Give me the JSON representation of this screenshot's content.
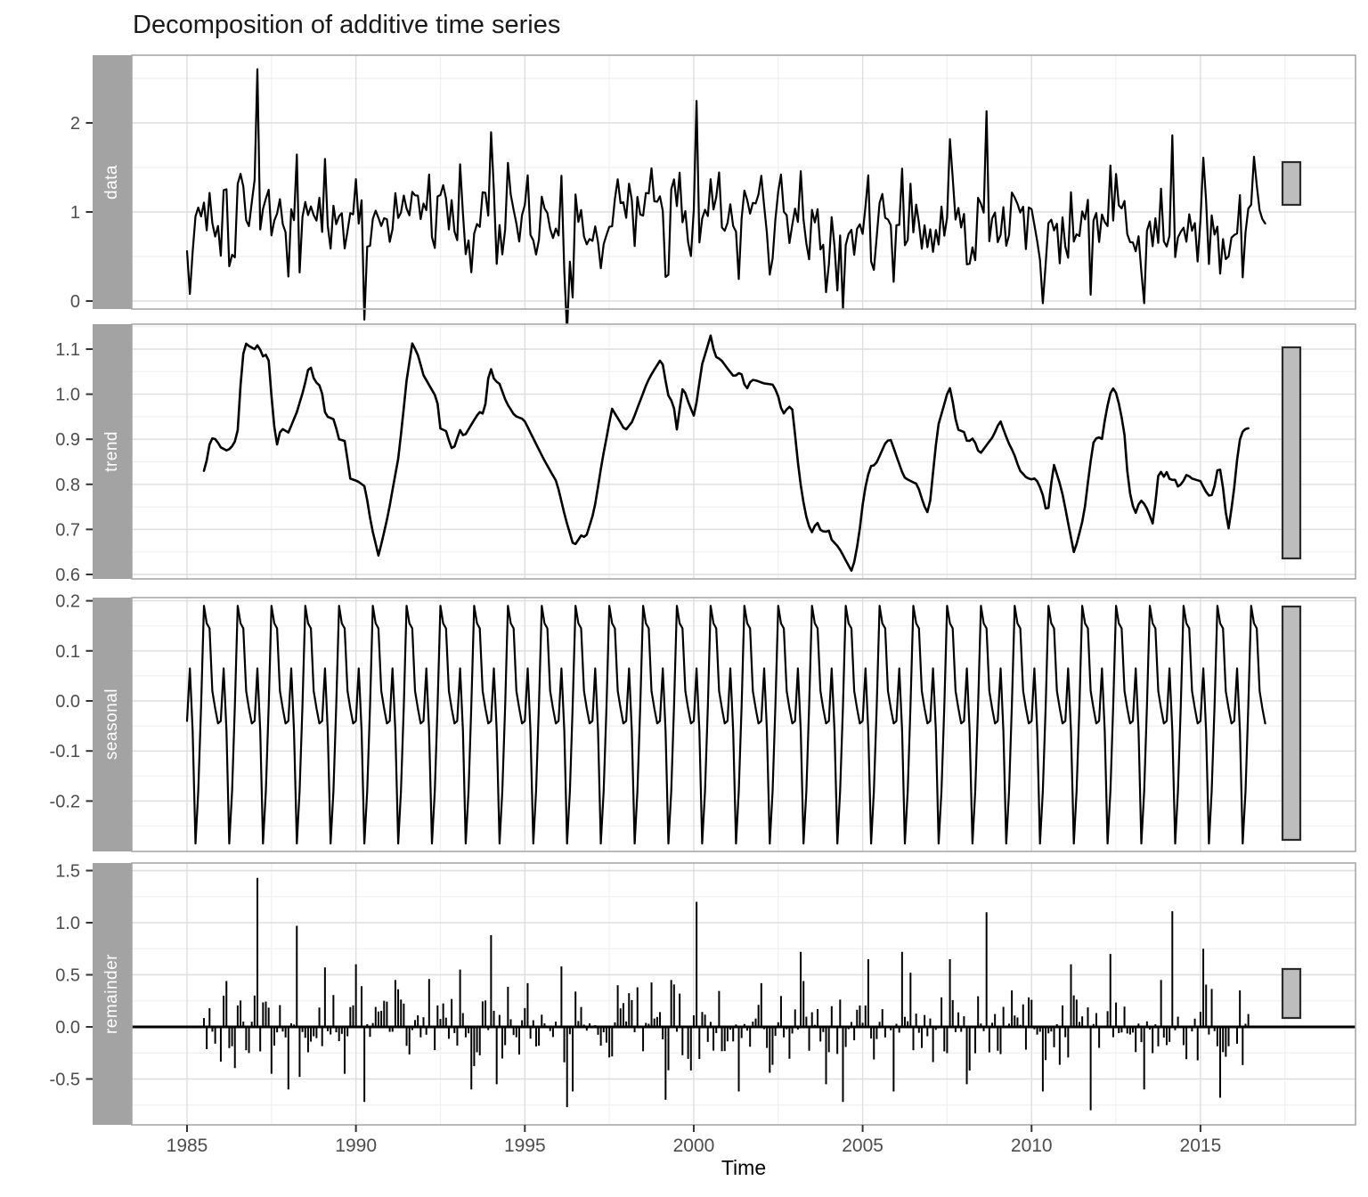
{
  "title": "Decomposition of additive time series",
  "axis": {
    "x_label": "Time"
  },
  "panels": [
    {
      "label": "data"
    },
    {
      "label": "trend"
    },
    {
      "label": "seasonal"
    },
    {
      "label": "remainder"
    }
  ],
  "colors": {
    "series": "#000000",
    "strip_bg": "#a3a3a3",
    "strip_text": "#ffffff",
    "grid_major": "#dedede",
    "grid_minor": "#f0f0f0",
    "panel_border": "#a8a8a8",
    "panel_bg": "#ffffff",
    "tick_mark": "#333333",
    "tick_label": "#4d4d4d",
    "scale_bar_fill": "#bdbdbd",
    "scale_bar_border": "#2b2b2b"
  },
  "chart_data": {
    "type": "line",
    "title": "Decomposition of additive time series",
    "xlabel": "Time",
    "x_ticks": [
      1985,
      1990,
      1995,
      2000,
      2005,
      2010,
      2015
    ],
    "x_minor_ticks": [
      1987.5,
      1992.5,
      1997.5,
      2002.5,
      2007.5,
      2012.5,
      2017.5
    ],
    "x_range_years": [
      1983.35,
      2019.6
    ],
    "start_year": 1985,
    "n_months": 384,
    "grid": true,
    "legend": "none",
    "panels": [
      {
        "name": "data",
        "y_tick_labels": [
          "0",
          "1",
          "2"
        ],
        "y_minor": [
          0.5,
          1.5,
          2.5
        ],
        "ylim": [
          -0.09,
          2.76
        ]
      },
      {
        "name": "trend",
        "y_tick_labels": [
          "1.1",
          "1.0",
          "0.9",
          "0.8",
          "0.7",
          "0.6"
        ],
        "y_minor": [
          0.65,
          0.75,
          0.85,
          0.95,
          1.05,
          1.15
        ],
        "ylim": [
          0.59,
          1.156
        ]
      },
      {
        "name": "seasonal",
        "y_tick_labels": [
          "0.2",
          "0.1",
          "0.0",
          "-0.1",
          "-0.2"
        ],
        "y_minor": [
          -0.25,
          -0.15,
          -0.05,
          0.05,
          0.15
        ],
        "ylim": [
          -0.301,
          0.206
        ]
      },
      {
        "name": "remainder",
        "y_tick_labels": [
          "1.5",
          "1.0",
          "0.5",
          "0.0",
          "-0.5"
        ],
        "y_minor": [
          -0.75,
          -0.25,
          0.25,
          0.75,
          1.25
        ],
        "ylim": [
          -0.94,
          1.573
        ]
      }
    ],
    "seasonal_pattern": [
      -0.04,
      0.065,
      -0.06,
      -0.285,
      -0.18,
      -0.01,
      0.19,
      0.155,
      0.145,
      0.02,
      -0.015,
      -0.045
    ],
    "trend_points": [
      [
        1985.53,
        0.83
      ],
      [
        1985.7,
        0.903
      ],
      [
        1985.85,
        0.9
      ],
      [
        1986.0,
        0.882
      ],
      [
        1986.2,
        0.874
      ],
      [
        1986.4,
        0.89
      ],
      [
        1986.5,
        0.92
      ],
      [
        1986.6,
        1.04
      ],
      [
        1986.7,
        1.115
      ],
      [
        1986.85,
        1.106
      ],
      [
        1987.0,
        1.1
      ],
      [
        1987.1,
        1.11
      ],
      [
        1987.25,
        1.084
      ],
      [
        1987.4,
        1.09
      ],
      [
        1987.55,
        0.95
      ],
      [
        1987.65,
        0.883
      ],
      [
        1987.78,
        0.925
      ],
      [
        1988.0,
        0.915
      ],
      [
        1988.25,
        0.96
      ],
      [
        1988.45,
        1.01
      ],
      [
        1988.63,
        1.069
      ],
      [
        1988.77,
        1.03
      ],
      [
        1988.97,
        1.016
      ],
      [
        1989.1,
        0.952
      ],
      [
        1989.35,
        0.944
      ],
      [
        1989.5,
        0.9
      ],
      [
        1989.68,
        0.896
      ],
      [
        1989.82,
        0.813
      ],
      [
        1990.05,
        0.807
      ],
      [
        1990.27,
        0.795
      ],
      [
        1990.45,
        0.71
      ],
      [
        1990.67,
        0.641
      ],
      [
        1990.95,
        0.732
      ],
      [
        1991.27,
        0.865
      ],
      [
        1991.5,
        1.03
      ],
      [
        1991.67,
        1.114
      ],
      [
        1991.85,
        1.084
      ],
      [
        1992.0,
        1.042
      ],
      [
        1992.2,
        1.016
      ],
      [
        1992.4,
        0.99
      ],
      [
        1992.5,
        0.924
      ],
      [
        1992.67,
        0.918
      ],
      [
        1992.82,
        0.88
      ],
      [
        1992.94,
        0.885
      ],
      [
        1993.07,
        0.922
      ],
      [
        1993.2,
        0.905
      ],
      [
        1993.38,
        0.928
      ],
      [
        1993.65,
        0.961
      ],
      [
        1993.8,
        0.955
      ],
      [
        1993.96,
        1.065
      ],
      [
        1994.1,
        1.031
      ],
      [
        1994.25,
        1.023
      ],
      [
        1994.45,
        0.982
      ],
      [
        1994.7,
        0.952
      ],
      [
        1994.97,
        0.944
      ],
      [
        1995.23,
        0.905
      ],
      [
        1995.55,
        0.857
      ],
      [
        1995.95,
        0.804
      ],
      [
        1996.2,
        0.725
      ],
      [
        1996.45,
        0.662
      ],
      [
        1996.68,
        0.688
      ],
      [
        1996.8,
        0.68
      ],
      [
        1997.05,
        0.741
      ],
      [
        1997.3,
        0.857
      ],
      [
        1997.58,
        0.968
      ],
      [
        1997.84,
        0.936
      ],
      [
        1997.97,
        0.919
      ],
      [
        1998.18,
        0.939
      ],
      [
        1998.63,
        1.028
      ],
      [
        1998.85,
        1.057
      ],
      [
        1999.05,
        1.08
      ],
      [
        1999.24,
        0.998
      ],
      [
        1999.4,
        0.978
      ],
      [
        1999.5,
        0.922
      ],
      [
        1999.68,
        1.018
      ],
      [
        1999.85,
        0.98
      ],
      [
        2000.02,
        0.949
      ],
      [
        2000.24,
        1.064
      ],
      [
        2000.5,
        1.13
      ],
      [
        2000.63,
        1.084
      ],
      [
        2000.8,
        1.077
      ],
      [
        2001.03,
        1.054
      ],
      [
        2001.2,
        1.038
      ],
      [
        2001.32,
        1.047
      ],
      [
        2001.42,
        1.044
      ],
      [
        2001.55,
        1.008
      ],
      [
        2001.7,
        1.032
      ],
      [
        2001.82,
        1.031
      ],
      [
        2002.08,
        1.024
      ],
      [
        2002.35,
        1.021
      ],
      [
        2002.48,
        1.001
      ],
      [
        2002.61,
        0.962
      ],
      [
        2002.7,
        0.955
      ],
      [
        2002.79,
        0.975
      ],
      [
        2002.93,
        0.965
      ],
      [
        2003.06,
        0.863
      ],
      [
        2003.19,
        0.784
      ],
      [
        2003.32,
        0.731
      ],
      [
        2003.45,
        0.698
      ],
      [
        2003.51,
        0.693
      ],
      [
        2003.64,
        0.719
      ],
      [
        2003.75,
        0.699
      ],
      [
        2003.9,
        0.693
      ],
      [
        2003.98,
        0.703
      ],
      [
        2004.06,
        0.679
      ],
      [
        2004.3,
        0.659
      ],
      [
        2004.56,
        0.623
      ],
      [
        2004.67,
        0.608
      ],
      [
        2004.77,
        0.632
      ],
      [
        2004.9,
        0.691
      ],
      [
        2005.04,
        0.78
      ],
      [
        2005.22,
        0.84
      ],
      [
        2005.38,
        0.843
      ],
      [
        2005.7,
        0.896
      ],
      [
        2005.83,
        0.899
      ],
      [
        2006.22,
        0.816
      ],
      [
        2006.35,
        0.81
      ],
      [
        2006.62,
        0.8
      ],
      [
        2006.77,
        0.764
      ],
      [
        2006.88,
        0.741
      ],
      [
        2006.96,
        0.735
      ],
      [
        2007.22,
        0.926
      ],
      [
        2007.54,
        1.011
      ],
      [
        2007.6,
        1.014
      ],
      [
        2007.8,
        0.922
      ],
      [
        2008.0,
        0.916
      ],
      [
        2008.1,
        0.893
      ],
      [
        2008.28,
        0.903
      ],
      [
        2008.46,
        0.866
      ],
      [
        2008.86,
        0.906
      ],
      [
        2009.07,
        0.942
      ],
      [
        2009.31,
        0.893
      ],
      [
        2009.47,
        0.87
      ],
      [
        2009.65,
        0.831
      ],
      [
        2009.86,
        0.814
      ],
      [
        2010.0,
        0.811
      ],
      [
        2010.12,
        0.814
      ],
      [
        2010.31,
        0.784
      ],
      [
        2010.47,
        0.728
      ],
      [
        2010.65,
        0.847
      ],
      [
        2010.89,
        0.788
      ],
      [
        2010.97,
        0.758
      ],
      [
        2011.26,
        0.646
      ],
      [
        2011.55,
        0.731
      ],
      [
        2011.71,
        0.831
      ],
      [
        2011.84,
        0.896
      ],
      [
        2011.97,
        0.906
      ],
      [
        2012.08,
        0.899
      ],
      [
        2012.21,
        0.962
      ],
      [
        2012.37,
        1.014
      ],
      [
        2012.47,
        1.011
      ],
      [
        2012.6,
        0.975
      ],
      [
        2012.74,
        0.919
      ],
      [
        2012.87,
        0.795
      ],
      [
        2013.0,
        0.752
      ],
      [
        2013.08,
        0.736
      ],
      [
        2013.21,
        0.765
      ],
      [
        2013.29,
        0.762
      ],
      [
        2013.47,
        0.739
      ],
      [
        2013.55,
        0.716
      ],
      [
        2013.6,
        0.712
      ],
      [
        2013.79,
        0.847
      ],
      [
        2013.87,
        0.811
      ],
      [
        2014.0,
        0.827
      ],
      [
        2014.13,
        0.804
      ],
      [
        2014.21,
        0.817
      ],
      [
        2014.34,
        0.794
      ],
      [
        2014.47,
        0.804
      ],
      [
        2014.6,
        0.823
      ],
      [
        2014.73,
        0.813
      ],
      [
        2014.87,
        0.81
      ],
      [
        2015.0,
        0.807
      ],
      [
        2015.13,
        0.787
      ],
      [
        2015.26,
        0.774
      ],
      [
        2015.37,
        0.777
      ],
      [
        2015.5,
        0.831
      ],
      [
        2015.58,
        0.834
      ],
      [
        2015.71,
        0.771
      ],
      [
        2015.79,
        0.705
      ],
      [
        2015.84,
        0.702
      ],
      [
        2016.03,
        0.81
      ],
      [
        2016.11,
        0.876
      ],
      [
        2016.19,
        0.909
      ],
      [
        2016.29,
        0.922
      ],
      [
        2016.45,
        0.925
      ]
    ],
    "remainder_spikes": [
      [
        13,
        0.3
      ],
      [
        25,
        1.43
      ],
      [
        30,
        -0.45
      ],
      [
        36,
        -0.6
      ],
      [
        39,
        0.97
      ],
      [
        40,
        -0.48
      ],
      [
        49,
        0.57
      ],
      [
        56,
        -0.45
      ],
      [
        60,
        0.6
      ],
      [
        63,
        -0.72
      ],
      [
        74,
        0.45
      ],
      [
        86,
        0.46
      ],
      [
        97,
        0.55
      ],
      [
        101,
        -0.6
      ],
      [
        108,
        0.88
      ],
      [
        110,
        -0.55
      ],
      [
        121,
        0.42
      ],
      [
        133,
        0.58
      ],
      [
        135,
        -0.77
      ],
      [
        137,
        -0.62
      ],
      [
        153,
        0.4
      ],
      [
        160,
        0.38
      ],
      [
        170,
        -0.7
      ],
      [
        172,
        0.45
      ],
      [
        181,
        1.2
      ],
      [
        196,
        -0.62
      ],
      [
        204,
        0.42
      ],
      [
        218,
        0.72
      ],
      [
        227,
        -0.55
      ],
      [
        233,
        -0.72
      ],
      [
        242,
        0.65
      ],
      [
        251,
        -0.62
      ],
      [
        254,
        0.72
      ],
      [
        257,
        0.52
      ],
      [
        271,
        0.65
      ],
      [
        277,
        -0.55
      ],
      [
        284,
        1.1
      ],
      [
        293,
        0.35
      ],
      [
        304,
        -0.62
      ],
      [
        314,
        0.6
      ],
      [
        321,
        -0.8
      ],
      [
        328,
        0.7
      ],
      [
        340,
        -0.6
      ],
      [
        346,
        0.45
      ],
      [
        350,
        1.11
      ],
      [
        361,
        0.75
      ],
      [
        367,
        -0.68
      ],
      [
        374,
        0.35
      ]
    ],
    "remainder_noise": {
      "sd": 0.18,
      "clip": 0.44,
      "seed": 20
    },
    "data_head_1985": [
      0.56,
      0.08,
      0.55,
      0.95,
      1.05,
      0.95
    ],
    "data_tail_2016": [
      1.08,
      1.62,
      1.3,
      1.02,
      0.92,
      0.87
    ],
    "scale_bars_note": "gray range indicator bar on right of each panel, equal data range ~0.47 units"
  }
}
